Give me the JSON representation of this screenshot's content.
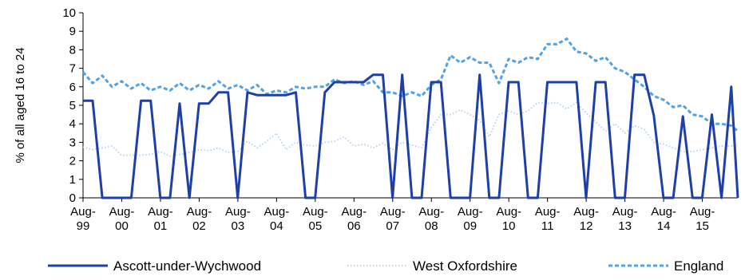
{
  "chart_data": {
    "type": "line",
    "ylabel": "% of all aged 16 to 24",
    "ylim": [
      0,
      10
    ],
    "yticks": [
      0,
      1,
      2,
      3,
      4,
      5,
      6,
      7,
      8,
      9,
      10
    ],
    "xlim": [
      1999.583,
      2016.5
    ],
    "xticks": [
      {
        "label1": "Aug-",
        "label2": "99",
        "x": 1999.583
      },
      {
        "label1": "Aug-",
        "label2": "00",
        "x": 2000.583
      },
      {
        "label1": "Aug-",
        "label2": "01",
        "x": 2001.583
      },
      {
        "label1": "Aug-",
        "label2": "02",
        "x": 2002.583
      },
      {
        "label1": "Aug-",
        "label2": "03",
        "x": 2003.583
      },
      {
        "label1": "Aug-",
        "label2": "04",
        "x": 2004.583
      },
      {
        "label1": "Aug-",
        "label2": "05",
        "x": 2005.583
      },
      {
        "label1": "Aug-",
        "label2": "06",
        "x": 2006.583
      },
      {
        "label1": "Aug-",
        "label2": "07",
        "x": 2007.583
      },
      {
        "label1": "Aug-",
        "label2": "08",
        "x": 2008.583
      },
      {
        "label1": "Aug-",
        "label2": "09",
        "x": 2009.583
      },
      {
        "label1": "Aug-",
        "label2": "10",
        "x": 2010.583
      },
      {
        "label1": "Aug-",
        "label2": "11",
        "x": 2011.583
      },
      {
        "label1": "Aug-",
        "label2": "12",
        "x": 2012.583
      },
      {
        "label1": "Aug-",
        "label2": "13",
        "x": 2013.583
      },
      {
        "label1": "Aug-",
        "label2": "14",
        "x": 2014.583
      },
      {
        "label1": "Aug-",
        "label2": "15",
        "x": 2015.583
      }
    ],
    "legend_position": "bottom",
    "series": [
      {
        "name": "Ascott-under-Wychwood",
        "color": "#1f3fa8",
        "style": "solid",
        "points": [
          [
            1999.58,
            5.25
          ],
          [
            1999.83,
            5.25
          ],
          [
            2000.08,
            0
          ],
          [
            2000.33,
            0
          ],
          [
            2000.58,
            0
          ],
          [
            2000.83,
            0
          ],
          [
            2001.08,
            5.25
          ],
          [
            2001.33,
            5.25
          ],
          [
            2001.58,
            0
          ],
          [
            2001.83,
            0
          ],
          [
            2002.08,
            5.1
          ],
          [
            2002.33,
            0
          ],
          [
            2002.58,
            5.1
          ],
          [
            2002.83,
            5.1
          ],
          [
            2003.08,
            5.7
          ],
          [
            2003.33,
            5.7
          ],
          [
            2003.58,
            0
          ],
          [
            2003.83,
            5.7
          ],
          [
            2004.08,
            5.55
          ],
          [
            2004.33,
            5.55
          ],
          [
            2004.58,
            5.55
          ],
          [
            2004.83,
            5.55
          ],
          [
            2005.08,
            5.7
          ],
          [
            2005.33,
            0
          ],
          [
            2005.58,
            0
          ],
          [
            2005.83,
            5.7
          ],
          [
            2006.08,
            6.25
          ],
          [
            2006.33,
            6.25
          ],
          [
            2006.58,
            6.25
          ],
          [
            2006.83,
            6.25
          ],
          [
            2007.08,
            6.65
          ],
          [
            2007.33,
            6.65
          ],
          [
            2007.58,
            0
          ],
          [
            2007.83,
            6.65
          ],
          [
            2008.08,
            0
          ],
          [
            2008.33,
            0
          ],
          [
            2008.58,
            6.25
          ],
          [
            2008.83,
            6.25
          ],
          [
            2009.08,
            0
          ],
          [
            2009.33,
            0
          ],
          [
            2009.58,
            0
          ],
          [
            2009.83,
            6.65
          ],
          [
            2010.08,
            0
          ],
          [
            2010.33,
            0
          ],
          [
            2010.58,
            6.25
          ],
          [
            2010.83,
            6.25
          ],
          [
            2011.08,
            0
          ],
          [
            2011.33,
            0
          ],
          [
            2011.58,
            6.25
          ],
          [
            2011.83,
            6.25
          ],
          [
            2012.08,
            6.25
          ],
          [
            2012.33,
            6.25
          ],
          [
            2012.58,
            0
          ],
          [
            2012.83,
            6.25
          ],
          [
            2013.08,
            6.25
          ],
          [
            2013.33,
            0
          ],
          [
            2013.58,
            0
          ],
          [
            2013.83,
            6.65
          ],
          [
            2014.08,
            6.65
          ],
          [
            2014.33,
            4.45
          ],
          [
            2014.58,
            0
          ],
          [
            2014.83,
            0
          ],
          [
            2015.08,
            4.4
          ],
          [
            2015.33,
            0
          ],
          [
            2015.58,
            0
          ],
          [
            2015.83,
            4.5
          ],
          [
            2016.08,
            0
          ],
          [
            2016.33,
            6.0
          ],
          [
            2016.5,
            0
          ]
        ]
      },
      {
        "name": "West Oxfordshire",
        "color": "#b8d4ee",
        "style": "dotted",
        "points": [
          [
            1999.58,
            2.75
          ],
          [
            1999.83,
            2.6
          ],
          [
            2000.08,
            2.7
          ],
          [
            2000.33,
            2.8
          ],
          [
            2000.58,
            2.3
          ],
          [
            2000.83,
            2.3
          ],
          [
            2001.08,
            2.3
          ],
          [
            2001.33,
            2.35
          ],
          [
            2001.58,
            2.5
          ],
          [
            2001.83,
            2.25
          ],
          [
            2002.08,
            2.35
          ],
          [
            2002.33,
            2.45
          ],
          [
            2002.58,
            2.6
          ],
          [
            2002.83,
            2.55
          ],
          [
            2003.08,
            2.7
          ],
          [
            2003.33,
            2.45
          ],
          [
            2003.58,
            2.5
          ],
          [
            2003.83,
            3.05
          ],
          [
            2004.08,
            2.7
          ],
          [
            2004.33,
            3.05
          ],
          [
            2004.58,
            3.5
          ],
          [
            2004.83,
            2.6
          ],
          [
            2005.08,
            3.0
          ],
          [
            2005.33,
            2.85
          ],
          [
            2005.58,
            2.8
          ],
          [
            2005.83,
            3.0
          ],
          [
            2006.08,
            3.05
          ],
          [
            2006.33,
            3.3
          ],
          [
            2006.58,
            2.8
          ],
          [
            2006.83,
            2.9
          ],
          [
            2007.08,
            2.7
          ],
          [
            2007.33,
            2.95
          ],
          [
            2007.58,
            2.6
          ],
          [
            2007.83,
            3.0
          ],
          [
            2008.08,
            2.85
          ],
          [
            2008.33,
            2.7
          ],
          [
            2008.58,
            3.8
          ],
          [
            2008.83,
            4.5
          ],
          [
            2009.08,
            4.5
          ],
          [
            2009.33,
            4.75
          ],
          [
            2009.58,
            4.5
          ],
          [
            2009.83,
            4.2
          ],
          [
            2010.08,
            3.3
          ],
          [
            2010.33,
            4.5
          ],
          [
            2010.58,
            4.7
          ],
          [
            2010.83,
            4.5
          ],
          [
            2011.08,
            4.7
          ],
          [
            2011.33,
            5.15
          ],
          [
            2011.58,
            5.1
          ],
          [
            2011.83,
            5.15
          ],
          [
            2012.08,
            4.8
          ],
          [
            2012.33,
            5.15
          ],
          [
            2012.58,
            4.6
          ],
          [
            2012.83,
            4.1
          ],
          [
            2013.08,
            3.6
          ],
          [
            2013.33,
            4.0
          ],
          [
            2013.58,
            3.5
          ],
          [
            2013.83,
            3.9
          ],
          [
            2014.08,
            3.7
          ],
          [
            2014.33,
            3.0
          ],
          [
            2014.58,
            2.9
          ],
          [
            2014.83,
            2.7
          ],
          [
            2015.08,
            2.5
          ],
          [
            2015.33,
            2.5
          ],
          [
            2015.58,
            2.6
          ],
          [
            2015.83,
            2.7
          ],
          [
            2016.08,
            2.8
          ],
          [
            2016.33,
            2.8
          ],
          [
            2016.5,
            2.8
          ]
        ]
      },
      {
        "name": "England",
        "color": "#4fa3e6",
        "style": "dashed",
        "points": [
          [
            1999.58,
            6.8
          ],
          [
            1999.83,
            6.2
          ],
          [
            2000.08,
            6.6
          ],
          [
            2000.33,
            6.0
          ],
          [
            2000.58,
            6.3
          ],
          [
            2000.83,
            5.9
          ],
          [
            2001.08,
            6.2
          ],
          [
            2001.33,
            5.8
          ],
          [
            2001.58,
            6.0
          ],
          [
            2001.83,
            5.8
          ],
          [
            2002.08,
            6.2
          ],
          [
            2002.33,
            5.8
          ],
          [
            2002.58,
            6.1
          ],
          [
            2002.83,
            5.9
          ],
          [
            2003.08,
            6.3
          ],
          [
            2003.33,
            5.9
          ],
          [
            2003.58,
            6.1
          ],
          [
            2003.83,
            5.8
          ],
          [
            2004.08,
            6.1
          ],
          [
            2004.33,
            5.6
          ],
          [
            2004.58,
            5.8
          ],
          [
            2004.83,
            5.7
          ],
          [
            2005.08,
            6.0
          ],
          [
            2005.33,
            5.9
          ],
          [
            2005.58,
            6.0
          ],
          [
            2005.83,
            6.0
          ],
          [
            2006.08,
            6.4
          ],
          [
            2006.33,
            6.2
          ],
          [
            2006.58,
            6.3
          ],
          [
            2006.83,
            6.1
          ],
          [
            2007.08,
            6.3
          ],
          [
            2007.33,
            5.7
          ],
          [
            2007.58,
            5.7
          ],
          [
            2007.83,
            5.5
          ],
          [
            2008.08,
            5.7
          ],
          [
            2008.33,
            5.5
          ],
          [
            2008.58,
            6.1
          ],
          [
            2008.83,
            6.4
          ],
          [
            2009.08,
            7.7
          ],
          [
            2009.33,
            7.3
          ],
          [
            2009.58,
            7.6
          ],
          [
            2009.83,
            7.3
          ],
          [
            2010.08,
            7.3
          ],
          [
            2010.33,
            6.2
          ],
          [
            2010.58,
            7.5
          ],
          [
            2010.83,
            7.3
          ],
          [
            2011.08,
            7.6
          ],
          [
            2011.33,
            7.5
          ],
          [
            2011.58,
            8.3
          ],
          [
            2011.83,
            8.3
          ],
          [
            2012.08,
            8.6
          ],
          [
            2012.33,
            7.9
          ],
          [
            2012.58,
            7.8
          ],
          [
            2012.83,
            7.4
          ],
          [
            2013.08,
            7.6
          ],
          [
            2013.33,
            7.0
          ],
          [
            2013.58,
            6.8
          ],
          [
            2013.83,
            6.4
          ],
          [
            2014.08,
            6.0
          ],
          [
            2014.33,
            5.5
          ],
          [
            2014.58,
            5.3
          ],
          [
            2014.83,
            4.9
          ],
          [
            2015.08,
            5.0
          ],
          [
            2015.33,
            4.5
          ],
          [
            2015.58,
            4.4
          ],
          [
            2015.83,
            4.0
          ],
          [
            2016.08,
            4.0
          ],
          [
            2016.33,
            3.9
          ],
          [
            2016.5,
            3.6
          ]
        ]
      }
    ]
  }
}
